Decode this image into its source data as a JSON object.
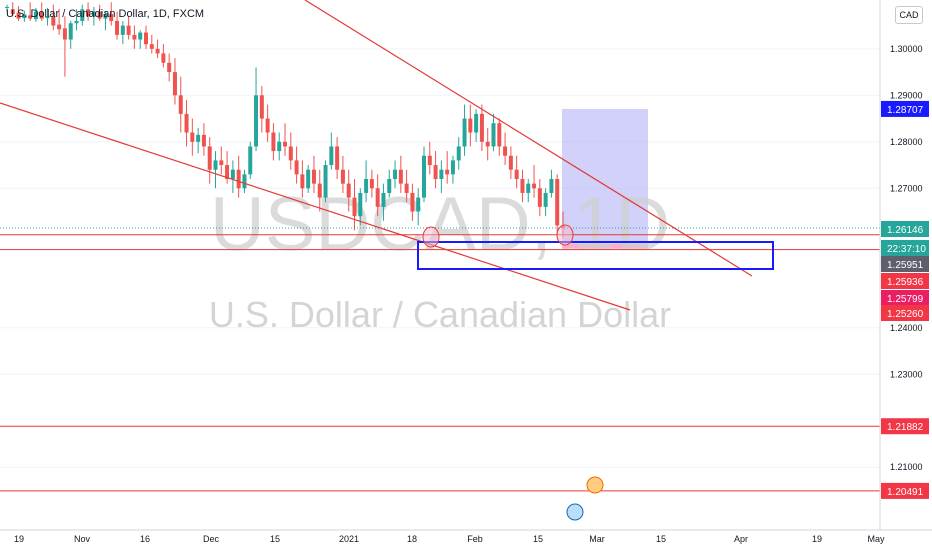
{
  "header": {
    "title": "U.S. Dollar / Canadian Dollar, 1D, FXCM",
    "currency": "CAD"
  },
  "watermark": {
    "symbol": "USDCAD, 1D",
    "name": "U.S. Dollar / Canadian Dollar"
  },
  "countdown": "22:37:10",
  "colors": {
    "up": "#26a69a",
    "down": "#ef5350",
    "line": "#e53935",
    "blue": "#1a1aff",
    "zone_fill": "#b3b3f5"
  },
  "chart_data": {
    "type": "candlestick",
    "y_axis": {
      "min": 1.1965,
      "max": 1.3105,
      "ticks": [
        "1.30000",
        "1.29000",
        "1.28000",
        "1.27000",
        "1.24000",
        "1.23000",
        "1.21000"
      ]
    },
    "x_axis": {
      "ticks": [
        "19",
        "Nov",
        "16",
        "Dec",
        "15",
        "2021",
        "18",
        "Feb",
        "15",
        "Mar",
        "15",
        "Apr",
        "19",
        "May"
      ]
    },
    "price_labels": [
      {
        "value": 1.28707,
        "text": "1.28707",
        "style": "blue"
      },
      {
        "value": 1.26146,
        "text": "1.26146",
        "style": "teal"
      },
      {
        "value": 1.25951,
        "text": "1.25951",
        "style": "gray"
      },
      {
        "value": 1.25936,
        "text": "1.25936",
        "style": "red"
      },
      {
        "value": 1.25799,
        "text": "1.25799",
        "style": "pink"
      },
      {
        "value": 1.2526,
        "text": "1.25260",
        "style": "red"
      },
      {
        "value": 1.21882,
        "text": "1.21882",
        "style": "red"
      },
      {
        "value": 1.20491,
        "text": "1.20491",
        "style": "red"
      }
    ],
    "horizontal_lines": [
      1.26,
      1.2568,
      1.21882,
      1.20491
    ],
    "current_price": 1.26146,
    "candles": [
      [
        1.309,
        1.3095,
        1.308,
        1.309
      ],
      [
        1.3085,
        1.31,
        1.307,
        1.3075
      ],
      [
        1.3078,
        1.3092,
        1.306,
        1.3065
      ],
      [
        1.3066,
        1.3082,
        1.3058,
        1.3074
      ],
      [
        1.3072,
        1.31,
        1.306,
        1.3065
      ],
      [
        1.3064,
        1.3088,
        1.3058,
        1.308
      ],
      [
        1.3079,
        1.31,
        1.306,
        1.3065
      ],
      [
        1.3066,
        1.3088,
        1.305,
        1.307
      ],
      [
        1.307,
        1.3095,
        1.304,
        1.305
      ],
      [
        1.3052,
        1.3086,
        1.303,
        1.3042
      ],
      [
        1.3044,
        1.307,
        1.294,
        1.302
      ],
      [
        1.302,
        1.306,
        1.3,
        1.3055
      ],
      [
        1.3055,
        1.3085,
        1.304,
        1.306
      ],
      [
        1.306,
        1.3095,
        1.305,
        1.3085
      ],
      [
        1.3085,
        1.31,
        1.306,
        1.307
      ],
      [
        1.307,
        1.309,
        1.305,
        1.308
      ],
      [
        1.308,
        1.3095,
        1.306,
        1.3065
      ],
      [
        1.3065,
        1.308,
        1.304,
        1.3075
      ],
      [
        1.3075,
        1.31,
        1.305,
        1.306
      ],
      [
        1.306,
        1.308,
        1.302,
        1.303
      ],
      [
        1.303,
        1.306,
        1.301,
        1.305
      ],
      [
        1.305,
        1.307,
        1.302,
        1.303
      ],
      [
        1.303,
        1.305,
        1.3,
        1.302
      ],
      [
        1.302,
        1.304,
        1.3,
        1.3035
      ],
      [
        1.3035,
        1.305,
        1.3,
        1.301
      ],
      [
        1.301,
        1.303,
        1.299,
        1.3
      ],
      [
        1.3,
        1.302,
        1.298,
        1.299
      ],
      [
        1.299,
        1.301,
        1.296,
        1.297
      ],
      [
        1.297,
        1.299,
        1.293,
        1.295
      ],
      [
        1.295,
        1.298,
        1.288,
        1.29
      ],
      [
        1.29,
        1.294,
        1.282,
        1.286
      ],
      [
        1.286,
        1.289,
        1.279,
        1.282
      ],
      [
        1.282,
        1.285,
        1.277,
        1.28
      ],
      [
        1.28,
        1.283,
        1.2775,
        1.2815
      ],
      [
        1.2815,
        1.284,
        1.277,
        1.279
      ],
      [
        1.279,
        1.281,
        1.271,
        1.274
      ],
      [
        1.274,
        1.278,
        1.27,
        1.276
      ],
      [
        1.276,
        1.279,
        1.273,
        1.275
      ],
      [
        1.275,
        1.278,
        1.271,
        1.272
      ],
      [
        1.272,
        1.276,
        1.269,
        1.274
      ],
      [
        1.274,
        1.277,
        1.268,
        1.27
      ],
      [
        1.27,
        1.274,
        1.269,
        1.273
      ],
      [
        1.273,
        1.28,
        1.272,
        1.279
      ],
      [
        1.279,
        1.296,
        1.278,
        1.29
      ],
      [
        1.29,
        1.292,
        1.282,
        1.285
      ],
      [
        1.285,
        1.288,
        1.28,
        1.282
      ],
      [
        1.282,
        1.284,
        1.276,
        1.278
      ],
      [
        1.278,
        1.282,
        1.276,
        1.28
      ],
      [
        1.28,
        1.284,
        1.277,
        1.279
      ],
      [
        1.279,
        1.282,
        1.274,
        1.276
      ],
      [
        1.276,
        1.279,
        1.271,
        1.273
      ],
      [
        1.273,
        1.276,
        1.268,
        1.27
      ],
      [
        1.27,
        1.275,
        1.269,
        1.274
      ],
      [
        1.274,
        1.277,
        1.269,
        1.271
      ],
      [
        1.271,
        1.274,
        1.265,
        1.268
      ],
      [
        1.268,
        1.276,
        1.267,
        1.275
      ],
      [
        1.275,
        1.282,
        1.274,
        1.279
      ],
      [
        1.279,
        1.281,
        1.272,
        1.274
      ],
      [
        1.274,
        1.277,
        1.269,
        1.271
      ],
      [
        1.271,
        1.274,
        1.265,
        1.268
      ],
      [
        1.268,
        1.272,
        1.261,
        1.264
      ],
      [
        1.264,
        1.27,
        1.262,
        1.269
      ],
      [
        1.269,
        1.276,
        1.267,
        1.272
      ],
      [
        1.272,
        1.274,
        1.268,
        1.27
      ],
      [
        1.27,
        1.273,
        1.264,
        1.266
      ],
      [
        1.266,
        1.271,
        1.263,
        1.269
      ],
      [
        1.269,
        1.274,
        1.268,
        1.272
      ],
      [
        1.272,
        1.276,
        1.27,
        1.274
      ],
      [
        1.274,
        1.277,
        1.269,
        1.271
      ],
      [
        1.271,
        1.274,
        1.267,
        1.269
      ],
      [
        1.269,
        1.271,
        1.263,
        1.265
      ],
      [
        1.265,
        1.27,
        1.262,
        1.268
      ],
      [
        1.268,
        1.279,
        1.267,
        1.277
      ],
      [
        1.277,
        1.28,
        1.273,
        1.275
      ],
      [
        1.275,
        1.278,
        1.27,
        1.272
      ],
      [
        1.272,
        1.276,
        1.269,
        1.274
      ],
      [
        1.274,
        1.278,
        1.271,
        1.273
      ],
      [
        1.273,
        1.277,
        1.271,
        1.276
      ],
      [
        1.276,
        1.281,
        1.274,
        1.279
      ],
      [
        1.279,
        1.288,
        1.277,
        1.285
      ],
      [
        1.285,
        1.288,
        1.279,
        1.282
      ],
      [
        1.282,
        1.287,
        1.28,
        1.286
      ],
      [
        1.286,
        1.288,
        1.278,
        1.28
      ],
      [
        1.28,
        1.283,
        1.276,
        1.279
      ],
      [
        1.279,
        1.286,
        1.278,
        1.284
      ],
      [
        1.284,
        1.285,
        1.277,
        1.279
      ],
      [
        1.279,
        1.282,
        1.275,
        1.277
      ],
      [
        1.277,
        1.279,
        1.272,
        1.274
      ],
      [
        1.274,
        1.277,
        1.27,
        1.272
      ],
      [
        1.272,
        1.274,
        1.267,
        1.269
      ],
      [
        1.269,
        1.272,
        1.267,
        1.271
      ],
      [
        1.271,
        1.275,
        1.268,
        1.27
      ],
      [
        1.27,
        1.272,
        1.264,
        1.266
      ],
      [
        1.266,
        1.27,
        1.264,
        1.269
      ],
      [
        1.269,
        1.274,
        1.268,
        1.272
      ],
      [
        1.272,
        1.273,
        1.26,
        1.262
      ],
      [
        1.262,
        1.265,
        1.2595,
        1.2615
      ]
    ]
  }
}
